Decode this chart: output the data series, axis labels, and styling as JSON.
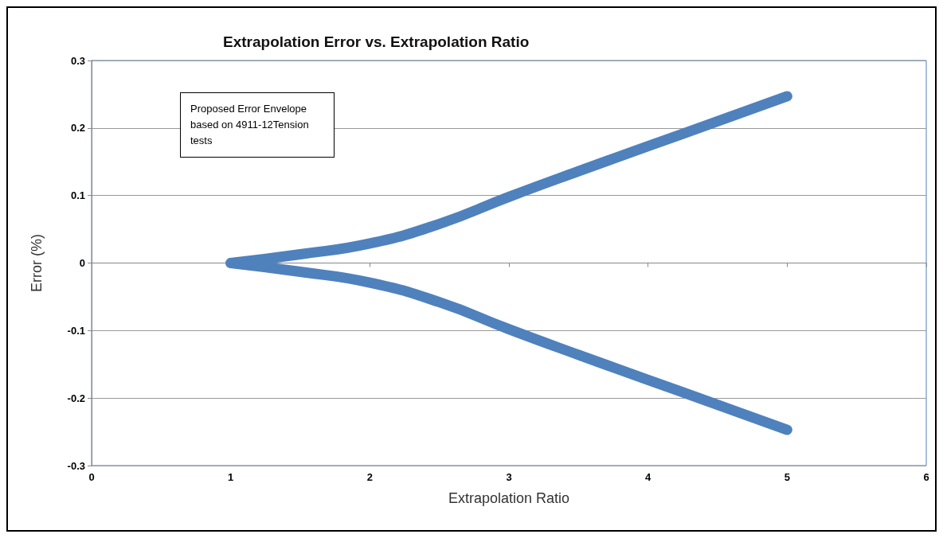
{
  "chart_data": {
    "type": "line",
    "title": "Extrapolation Error vs. Extrapolation Ratio",
    "xlabel": "Extrapolation Ratio",
    "ylabel": "Error (%)",
    "annotations": [
      "Proposed Error Envelope based on 4911-12Tension tests"
    ],
    "series": [
      {
        "color": "#4f81bd",
        "x": [
          1,
          1.5,
          2,
          2.5,
          3,
          3.5,
          4,
          4.5,
          5
        ],
        "values": [
          0,
          0.013,
          0.029,
          0.058,
          0.098,
          0.136,
          0.173,
          0.21,
          0.247
        ]
      },
      {
        "color": "#4f81bd",
        "x": [
          1,
          1.5,
          2,
          2.5,
          3,
          3.5,
          4,
          4.5,
          5
        ],
        "values": [
          0,
          -0.013,
          -0.029,
          -0.058,
          -0.098,
          -0.136,
          -0.173,
          -0.21,
          -0.247
        ]
      }
    ],
    "xlim": [
      0,
      6
    ],
    "xticks": [
      0,
      1,
      2,
      3,
      4,
      5,
      6
    ],
    "ylim": [
      -0.3,
      0.3
    ],
    "yticks": [
      -0.3,
      -0.2,
      -0.1,
      0,
      0.1,
      0.2,
      0.3
    ],
    "grid": "y",
    "line_style": "solid"
  }
}
